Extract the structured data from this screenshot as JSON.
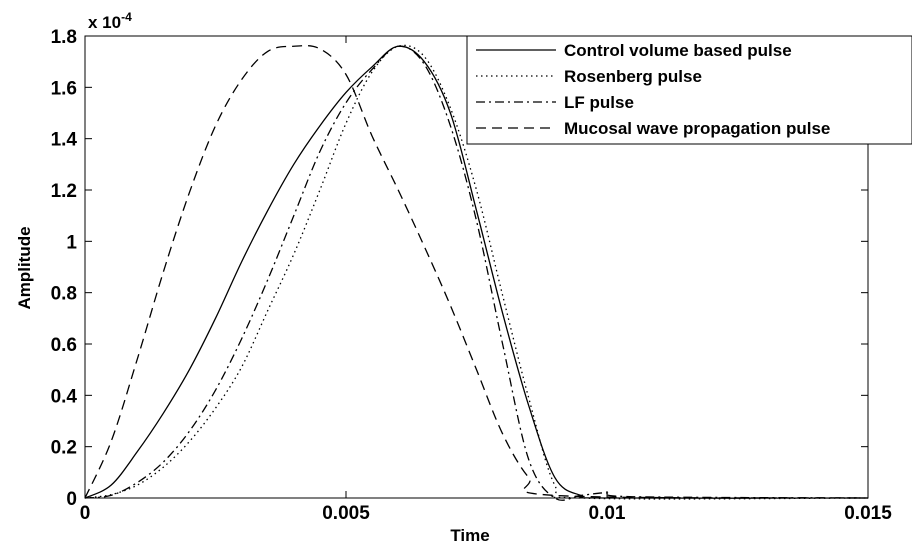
{
  "chart_data": {
    "type": "line",
    "xlabel": "Time",
    "ylabel": "Amplitude",
    "xlim": [
      0,
      0.015
    ],
    "ylim": [
      0,
      0.00018
    ],
    "x_ticks": [
      "0",
      "0.005",
      "0.01",
      "0.015"
    ],
    "y_ticks": [
      "0",
      "0.2",
      "0.4",
      "0.6",
      "0.8",
      "1",
      "1.2",
      "1.4",
      "1.6",
      "1.8"
    ],
    "y_exponent": {
      "base": "x 10",
      "power": "-4"
    },
    "grid": false,
    "legend_position": "top-right",
    "series": [
      {
        "name": "Control volume based pulse",
        "style": "solid",
        "x": [
          0,
          0.0005,
          0.001,
          0.0015,
          0.002,
          0.0025,
          0.003,
          0.0035,
          0.004,
          0.0045,
          0.005,
          0.0055,
          0.006,
          0.0065,
          0.007,
          0.0075,
          0.008,
          0.0085,
          0.009,
          0.0095,
          0.01,
          0.015
        ],
        "y": [
          0,
          5e-06,
          1.8e-05,
          3.3e-05,
          5e-05,
          7e-05,
          9.2e-05,
          0.000112,
          0.00013,
          0.000145,
          0.000158,
          0.000168,
          0.000176,
          0.00017,
          0.00015,
          0.000112,
          7.2e-05,
          3.6e-05,
          8e-06,
          1e-06,
          0,
          0
        ]
      },
      {
        "name": "Rosenberg pulse",
        "style": "dotted",
        "x": [
          0,
          0.0005,
          0.001,
          0.0015,
          0.002,
          0.0025,
          0.003,
          0.0035,
          0.004,
          0.0045,
          0.005,
          0.0055,
          0.006,
          0.0065,
          0.007,
          0.0075,
          0.008,
          0.0085,
          0.009,
          0.0095,
          0.015
        ],
        "y": [
          0,
          1.3e-06,
          5e-06,
          1.2e-05,
          2.2e-05,
          3.5e-05,
          5.1e-05,
          7.3e-05,
          9.5e-05,
          0.00012,
          0.000146,
          0.000166,
          0.000176,
          0.000172,
          0.000152,
          0.00012,
          7.9e-05,
          3.9e-05,
          5e-06,
          0,
          0
        ]
      },
      {
        "name": "LF pulse",
        "style": "dashdot",
        "x": [
          0,
          0.0005,
          0.001,
          0.0015,
          0.002,
          0.0025,
          0.003,
          0.0035,
          0.004,
          0.0045,
          0.005,
          0.0055,
          0.006,
          0.0065,
          0.007,
          0.0075,
          0.008,
          0.0085,
          0.009,
          0.0095,
          0.01,
          0.0105,
          0.015
        ],
        "y": [
          0,
          1e-06,
          6e-06,
          1.4e-05,
          2.6e-05,
          4.2e-05,
          6.2e-05,
          8.5e-05,
          0.00011,
          0.000135,
          0.000154,
          0.000167,
          0.000176,
          0.000169,
          0.000145,
          0.000108,
          6e-05,
          1.5e-05,
          0,
          1e-06,
          2e-06,
          5e-07,
          0
        ]
      },
      {
        "name": "Mucosal wave propagation pulse",
        "style": "dashed",
        "x": [
          0,
          0.0005,
          0.001,
          0.0015,
          0.002,
          0.0025,
          0.003,
          0.0035,
          0.004,
          0.0045,
          0.005,
          0.0055,
          0.006,
          0.0065,
          0.007,
          0.0075,
          0.008,
          0.0085,
          0.009,
          0.015
        ],
        "y": [
          0,
          2.2e-05,
          5.4e-05,
          8.8e-05,
          0.000119,
          0.000145,
          0.000163,
          0.000174,
          0.000176,
          0.000175,
          0.000165,
          0.000141,
          0.00012,
          9.8e-05,
          7.5e-05,
          5e-05,
          2.5e-05,
          8e-06,
          1e-06,
          0
        ]
      }
    ]
  }
}
